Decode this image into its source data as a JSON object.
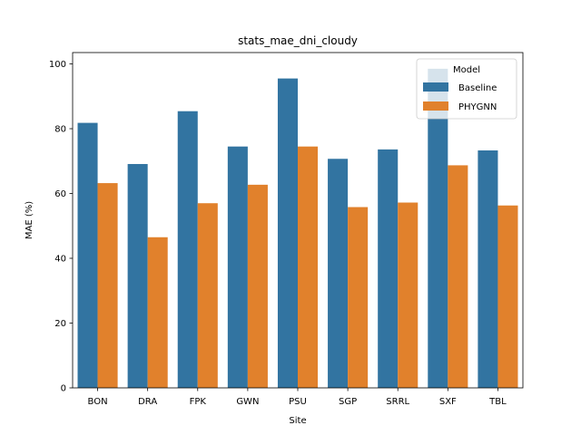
{
  "chart_data": {
    "type": "bar",
    "title": "stats_mae_dni_cloudy",
    "xlabel": "Site",
    "ylabel": "MAE (%)",
    "categories": [
      "BON",
      "DRA",
      "FPK",
      "GWN",
      "PSU",
      "SGP",
      "SRRL",
      "SXF",
      "TBL"
    ],
    "series": [
      {
        "name": "Baseline",
        "color": "#3274a1",
        "values": [
          81.8,
          69.1,
          85.4,
          74.5,
          95.5,
          70.7,
          73.6,
          98.5,
          73.3
        ]
      },
      {
        "name": "PHYGNN",
        "color": "#e1812c",
        "values": [
          63.2,
          46.5,
          57.0,
          62.7,
          74.5,
          55.8,
          57.2,
          68.7,
          56.3
        ]
      }
    ],
    "ylim": [
      0,
      103.5
    ],
    "yticks": [
      0,
      20,
      40,
      60,
      80,
      100
    ],
    "legend": {
      "title": "Model",
      "placement": "top-right"
    },
    "grid": false
  }
}
